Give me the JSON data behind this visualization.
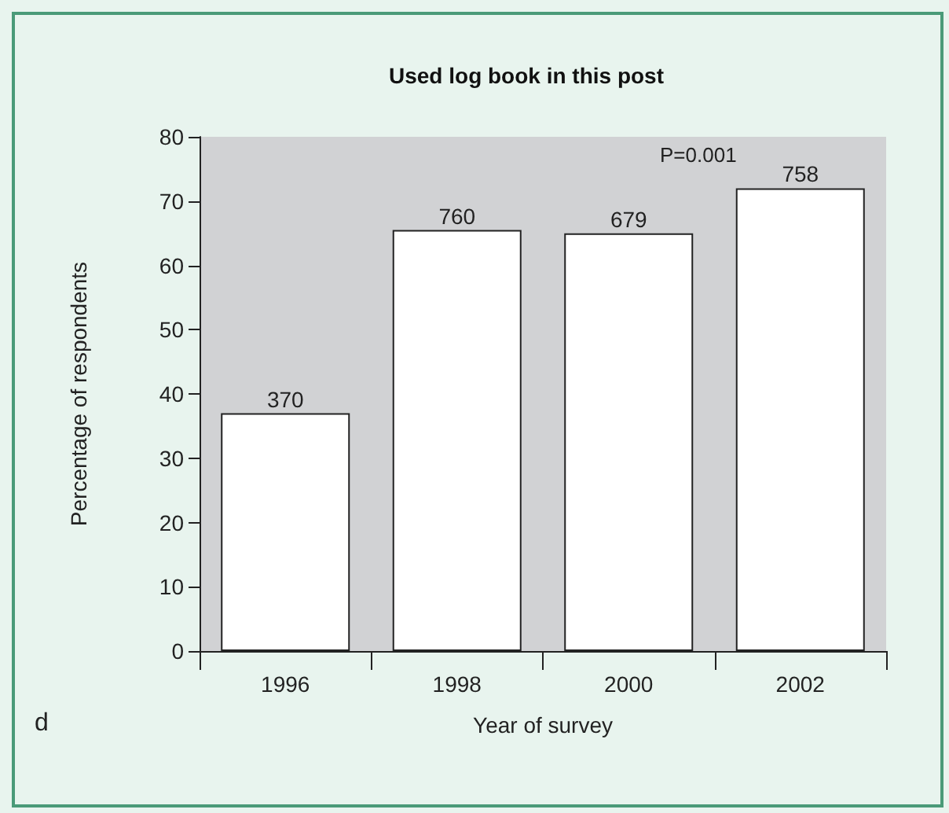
{
  "chart_data": {
    "type": "bar",
    "title": "Used log book in this post",
    "xlabel": "Year of survey",
    "ylabel": "Percentage of respondents",
    "categories": [
      "1996",
      "1998",
      "2000",
      "2002"
    ],
    "values": [
      37,
      65.5,
      65,
      72
    ],
    "color": "#ffffff",
    "ylim": [
      0,
      80
    ],
    "yticks": [
      0,
      10,
      20,
      30,
      40,
      50,
      60,
      70,
      80
    ],
    "annotations": [
      "P=0.001",
      "d",
      {
        "text": "370",
        "x": "1996",
        "y": 37
      },
      {
        "text": "760",
        "x": "1998",
        "y": 65.5
      },
      {
        "text": "679",
        "x": "2000",
        "y": 65
      },
      {
        "text": "758",
        "x": "2002",
        "y": 72
      }
    ]
  }
}
